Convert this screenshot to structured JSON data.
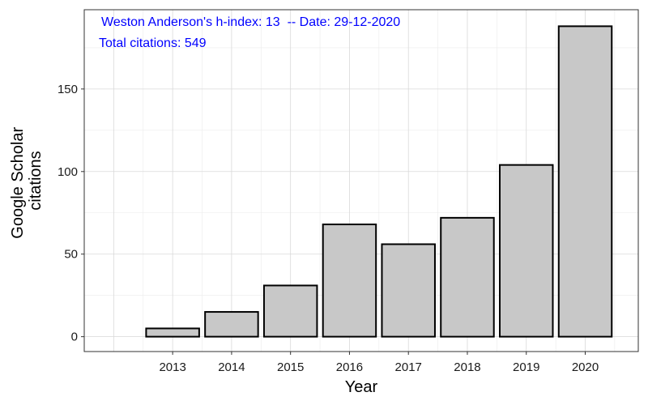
{
  "chart_data": {
    "type": "bar",
    "categories": [
      "2013",
      "2014",
      "2015",
      "2016",
      "2017",
      "2018",
      "2019",
      "2020"
    ],
    "values": [
      5,
      15,
      31,
      68,
      56,
      72,
      104,
      188
    ],
    "xlabel": "Year",
    "ylabel_lines": [
      "Google Scholar",
      "citations"
    ],
    "xlim": [
      2011.5,
      2020.9
    ],
    "ylim": [
      -9,
      198
    ],
    "yticks": [
      "0",
      "50",
      "100",
      "150"
    ],
    "grid": true,
    "bar_fill": "#c8c8c8",
    "bar_stroke": "#000000",
    "annotation_line1": "Weston Anderson's h-index: 13  -- Date: 29-12-2020",
    "annotation_line2": "Total citations: 549",
    "annotation_color": "#0000ff"
  }
}
